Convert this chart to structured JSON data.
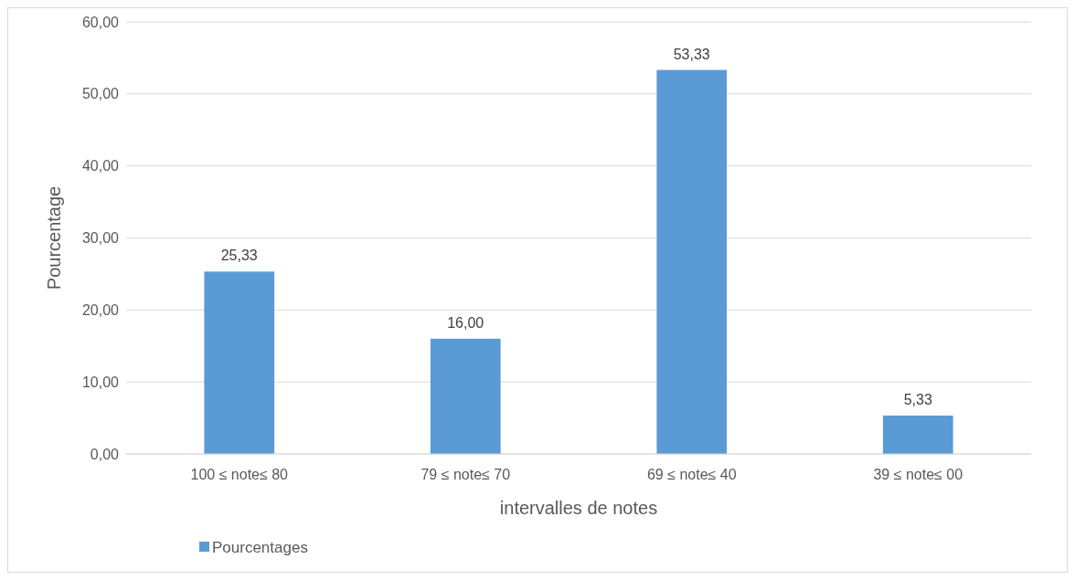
{
  "chart_data": {
    "type": "bar",
    "categories": [
      "100 ≤ note≤ 80",
      "79 ≤ note≤ 70",
      "69 ≤ note≤ 40",
      "39 ≤ note≤ 00"
    ],
    "series": [
      {
        "name": "Pourcentages",
        "color": "#5b9bd5",
        "values": [
          25.33,
          16.0,
          53.33,
          5.33
        ],
        "value_labels": [
          "25,33",
          "16,00",
          "53,33",
          "5,33"
        ]
      }
    ],
    "xlabel": "intervalles de notes",
    "ylabel": "Pourcentage",
    "ylim": [
      0,
      60
    ],
    "yticks": [
      {
        "value": 0,
        "label": "0,00"
      },
      {
        "value": 10,
        "label": "10,00"
      },
      {
        "value": 20,
        "label": "20,00"
      },
      {
        "value": 30,
        "label": "30,00"
      },
      {
        "value": 40,
        "label": "40,00"
      },
      {
        "value": 50,
        "label": "50,00"
      },
      {
        "value": 60,
        "label": "60,00"
      }
    ],
    "grid": "y",
    "legend": "bottom left"
  }
}
